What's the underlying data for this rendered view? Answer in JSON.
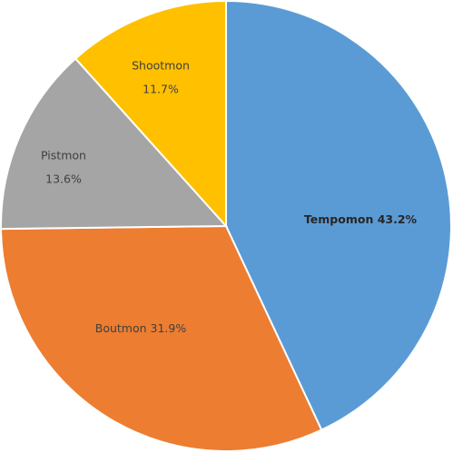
{
  "chart_data": {
    "type": "pie",
    "categories": [
      "Tempomon",
      "Boutmon",
      "Pistmon",
      "Shootmon"
    ],
    "values": [
      43.2,
      31.9,
      13.6,
      11.7
    ],
    "value_labels": [
      "43.2%",
      "31.9%",
      "13.6%",
      "11.7%"
    ],
    "colors": [
      "#5b9bd5",
      "#ed7d31",
      "#a5a5a5",
      "#ffc000"
    ]
  }
}
